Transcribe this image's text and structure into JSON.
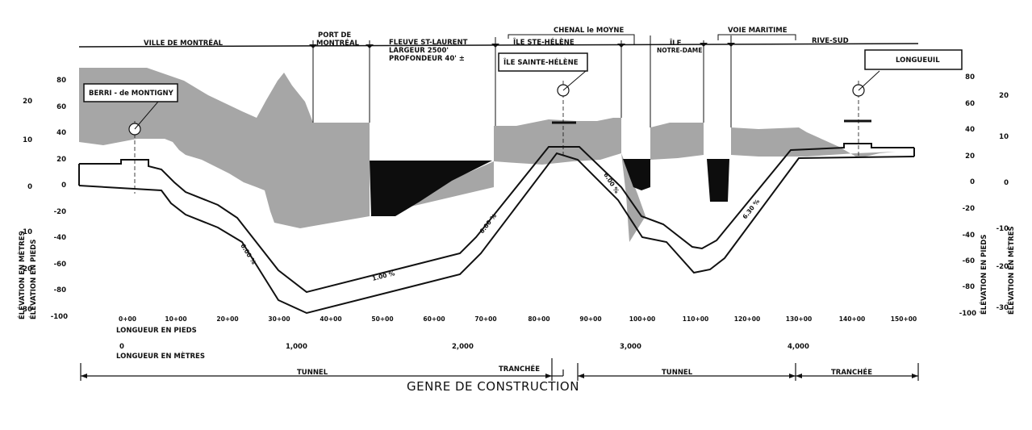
{
  "zones": {
    "ville_montreal": "VILLE DE MONTRÉAL",
    "port_l1": "PORT DE",
    "port_l2": "MONTRÉAL",
    "fleuve_l1": "FLEUVE ST-LAURENT",
    "fleuve_l2": "LARGEUR 2500'",
    "fleuve_l3": "PROFONDEUR 40' ±",
    "ile_ste_helene": "ÎLE STE-HÉLÈNE",
    "chenal": "CHENAL le MOYNE",
    "ile_nd_l1": "ÎLE",
    "ile_nd_l2": "NOTRE-DAME",
    "voie_maritime": "VOIE MARITIME",
    "rive_sud": "RIVE-SUD"
  },
  "stations": {
    "berri": "BERRI - de MONTIGNY",
    "sainte_helene": "ÎLE SAINTE-HÉLÈNE",
    "longueuil": "LONGUEUIL"
  },
  "grades": [
    "6.00 %",
    "1.00 %",
    "6.00 %",
    "6.00 %",
    "6.30 %"
  ],
  "axes": {
    "feet_ticks": [
      "80",
      "60",
      "40",
      "20",
      "0",
      "-20",
      "-40",
      "-60",
      "-80",
      "-100"
    ],
    "metre_ticks": [
      "20",
      "10",
      "0",
      "-10",
      "-20",
      "-30"
    ],
    "label_feet": "ÉLÉVATION EN PIEDS",
    "label_metres": "ÉLÉVATION EN MÈTRES",
    "chainage": [
      "0+00",
      "10+00",
      "20+00",
      "30+00",
      "40+00",
      "50+00",
      "60+00",
      "70+00",
      "80+00",
      "90+00",
      "100+00",
      "110+00",
      "120+00",
      "130+00",
      "140+00",
      "150+00"
    ],
    "length_feet_label": "LONGUEUR EN PIEDS",
    "metres_marks": [
      "0",
      "1,000",
      "2,000",
      "3,000",
      "4,000"
    ],
    "length_metres_label": "LONGUEUR EN MÈTRES"
  },
  "construction": {
    "tunnel1": "TUNNEL",
    "tranchee1": "TRANCHÉE",
    "tunnel2": "TUNNEL",
    "tranchee2": "TRANCHÉE",
    "title": "GENRE DE CONSTRUCTION"
  }
}
